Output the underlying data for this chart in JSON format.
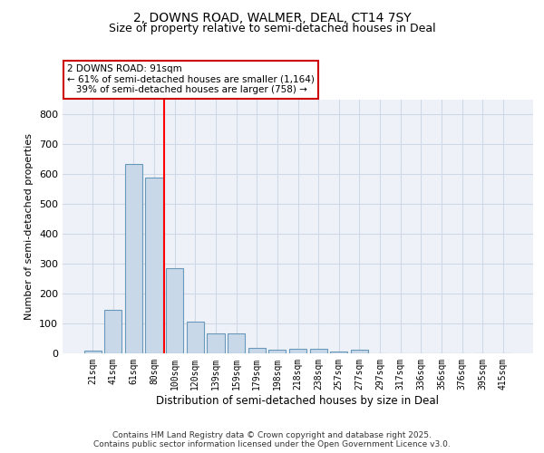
{
  "title1": "2, DOWNS ROAD, WALMER, DEAL, CT14 7SY",
  "title2": "Size of property relative to semi-detached houses in Deal",
  "xlabel": "Distribution of semi-detached houses by size in Deal",
  "ylabel": "Number of semi-detached properties",
  "categories": [
    "21sqm",
    "41sqm",
    "61sqm",
    "80sqm",
    "100sqm",
    "120sqm",
    "139sqm",
    "159sqm",
    "179sqm",
    "198sqm",
    "218sqm",
    "238sqm",
    "257sqm",
    "277sqm",
    "297sqm",
    "317sqm",
    "336sqm",
    "356sqm",
    "376sqm",
    "395sqm",
    "415sqm"
  ],
  "values": [
    10,
    145,
    635,
    590,
    285,
    105,
    68,
    68,
    18,
    12,
    15,
    15,
    7,
    12,
    0,
    0,
    0,
    0,
    0,
    0,
    0
  ],
  "bar_color": "#c8d8e8",
  "bar_edge_color": "#6899bb",
  "annotation_text": "2 DOWNS ROAD: 91sqm\n← 61% of semi-detached houses are smaller (1,164)\n   39% of semi-detached houses are larger (758) →",
  "annotation_box_color": "#ffffff",
  "annotation_box_edge": "#cc0000",
  "ylim": [
    0,
    850
  ],
  "yticks": [
    0,
    100,
    200,
    300,
    400,
    500,
    600,
    700,
    800
  ],
  "grid_color": "#d0d8e8",
  "background_color": "#eef2f8",
  "footer_text": "Contains HM Land Registry data © Crown copyright and database right 2025.\nContains public sector information licensed under the Open Government Licence v3.0.",
  "title_fontsize": 10,
  "subtitle_fontsize": 9
}
